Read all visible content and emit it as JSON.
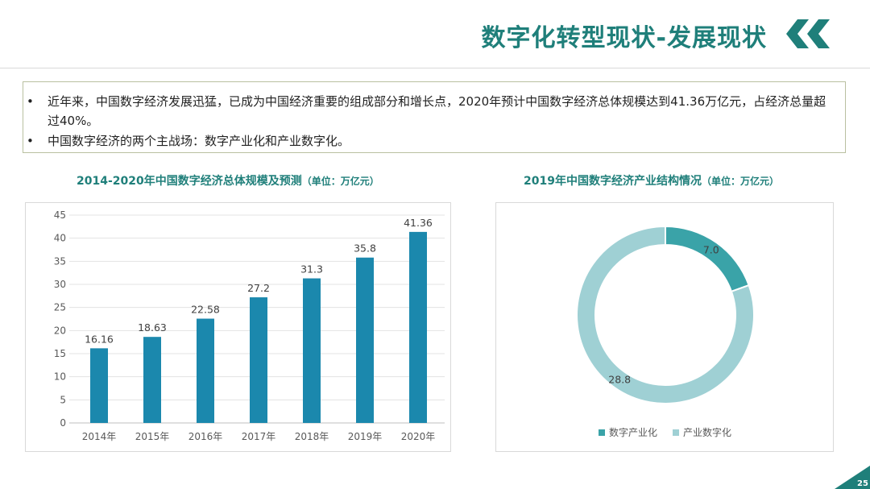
{
  "header": {
    "title": "数字化转型现状-发展现状"
  },
  "intro": {
    "bullet_glyph": "•",
    "items": [
      "近年来，中国数字经济发展迅猛，已成为中国经济重要的组成部分和增长点，2020年预计中国数字经济总体规模达到41.36万亿元，占经济总量超过40%。",
      "中国数字经济的两个主战场：数字产业化和产业数字化。"
    ]
  },
  "bar_chart": {
    "title_main": "2014-2020年中国数字经济总体规模及预测",
    "title_unit": "（单位：万亿元）"
  },
  "donut_chart": {
    "title_main": "2019年中国数字经济产业结构情况",
    "title_unit": "（单位：万亿元）"
  },
  "page": {
    "number": "25"
  },
  "colors": {
    "accent": "#1f7f7a",
    "bar": "#1b88ad",
    "donut_dark": "#3aa3a8",
    "donut_light": "#9fd0d4",
    "box_border": "#b9c0a0"
  },
  "chart_data": [
    {
      "type": "bar",
      "title": "2014-2020年中国数字经济总体规模及预测（单位：万亿元）",
      "categories": [
        "2014年",
        "2015年",
        "2016年",
        "2017年",
        "2018年",
        "2019年",
        "2020年"
      ],
      "values": [
        16.16,
        18.63,
        22.58,
        27.2,
        31.3,
        35.8,
        41.36
      ],
      "value_labels": [
        "16.16",
        "18.63",
        "22.58",
        "27.2",
        "31.3",
        "35.8",
        "41.36"
      ],
      "ylim": [
        0,
        45
      ],
      "yticks": [
        "0",
        "5",
        "10",
        "15",
        "20",
        "25",
        "30",
        "35",
        "40",
        "45"
      ],
      "grid": true,
      "xlabel": "",
      "ylabel": ""
    },
    {
      "type": "pie",
      "title": "2019年中国数字经济产业结构情况（单位：万亿元）",
      "donut": true,
      "slices": [
        {
          "label": "数字产业化",
          "value": 7.0,
          "value_label": "7.0",
          "color": "#3aa3a8"
        },
        {
          "label": "产业数字化",
          "value": 28.8,
          "value_label": "28.8",
          "color": "#9fd0d4"
        }
      ],
      "legend_position": "bottom"
    }
  ]
}
